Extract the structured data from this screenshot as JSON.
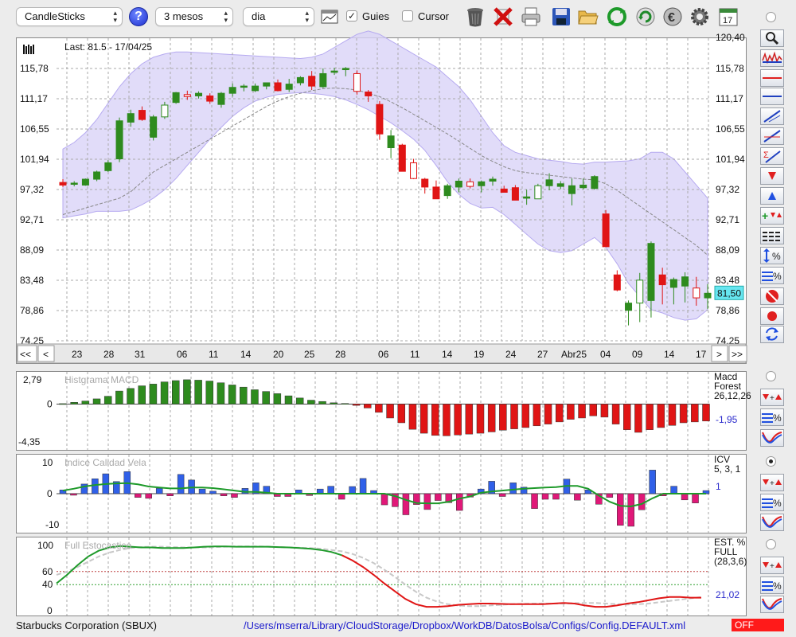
{
  "toolbar": {
    "chart_type": "CandleSticks",
    "period": "3 mesos",
    "interval": "dia",
    "help": "?",
    "guides_label": "Guies",
    "guides_checked": true,
    "cursor_label": "Cursor",
    "cursor_checked": false,
    "icons": [
      "trash-icon",
      "delete-icon",
      "printer-icon",
      "save-icon",
      "folder-icon",
      "refresh-icon",
      "reload-icon",
      "euro-icon",
      "gear-icon",
      "calendar-icon"
    ],
    "calendar_day": "17"
  },
  "price_panel": {
    "last_label": "Last: 81.5 - 17/04/25",
    "current_value": "81,50",
    "y_ticks": [
      "115,78",
      "111,17",
      "106,55",
      "101,94",
      "97,32",
      "92,71",
      "88,09",
      "83,48",
      "78,86",
      "74,25"
    ],
    "top_cut_tick": "120,40",
    "nav_buttons": [
      "<<",
      "<",
      ">",
      ">>"
    ],
    "date_ticks": [
      "23",
      "28",
      "31",
      "06",
      "11",
      "14",
      "20",
      "25",
      "28",
      "06",
      "11",
      "14",
      "19",
      "24",
      "27",
      "Abr25",
      "04",
      "09",
      "14",
      "17"
    ]
  },
  "macd_panel": {
    "title": "Histgrama MACD",
    "name": "Macd",
    "sub": "Forest",
    "params": "26,12,26",
    "value": "-1,95",
    "y_ticks": [
      "2,79",
      "0",
      "-4,35"
    ]
  },
  "icv_panel": {
    "title": "Indice Calidad Vela",
    "name": "ICV",
    "params": "5, 3, 1",
    "value": "1",
    "y_ticks": [
      "10",
      "0",
      "-10"
    ]
  },
  "stoch_panel": {
    "title": "Full Estocastico",
    "name": "EST. %",
    "sub": "FULL",
    "params": "(28,3,6)",
    "value": "21,02",
    "y_ticks": [
      "100",
      "60",
      "40",
      "0"
    ]
  },
  "footer": {
    "company": "Starbucks Corporation (SBUX)",
    "path": "/Users/mserra/Library/CloudStorage/Dropbox/WorkDB/DatosBolsa/Configs/Config.DEFAULT.xml",
    "status": "OFF"
  },
  "colors": {
    "up": "#2e8b1e",
    "down": "#e01515",
    "band": "#cdc6f5",
    "blue": "#3060e8",
    "pink": "#e01878"
  },
  "chart_data": [
    {
      "type": "candlestick",
      "title": "",
      "ylim": [
        74.25,
        120.4
      ],
      "ohlc": [
        [
          98.4,
          98.9,
          97.7,
          98.0
        ],
        [
          98.2,
          98.6,
          97.8,
          98.3
        ],
        [
          98.0,
          99.0,
          97.9,
          98.9
        ],
        [
          98.9,
          100.2,
          98.6,
          100.0
        ],
        [
          100.2,
          101.8,
          100.0,
          101.4
        ],
        [
          102.0,
          108.3,
          101.5,
          107.8
        ],
        [
          107.6,
          109.5,
          106.9,
          108.9
        ],
        [
          109.4,
          110.0,
          107.8,
          108.0
        ],
        [
          105.3,
          108.7,
          104.8,
          108.4
        ],
        [
          108.4,
          110.7,
          108.1,
          110.2
        ],
        [
          110.6,
          112.2,
          110.4,
          112.1
        ],
        [
          111.8,
          112.4,
          111.0,
          111.5
        ],
        [
          111.6,
          112.3,
          111.2,
          112.0
        ],
        [
          111.6,
          112.0,
          110.4,
          110.8
        ],
        [
          110.3,
          112.2,
          109.8,
          112.0
        ],
        [
          112.0,
          113.5,
          111.5,
          112.9
        ],
        [
          113.0,
          113.4,
          112.3,
          113.1
        ],
        [
          112.4,
          113.5,
          112.2,
          113.1
        ],
        [
          113.1,
          113.6,
          112.6,
          113.6
        ],
        [
          113.6,
          114.1,
          112.3,
          112.4
        ],
        [
          112.6,
          114.2,
          112.2,
          113.4
        ],
        [
          113.6,
          114.6,
          113.2,
          114.4
        ],
        [
          114.6,
          115.4,
          112.5,
          113.1
        ],
        [
          113.0,
          115.8,
          112.8,
          115.0
        ],
        [
          115.2,
          115.9,
          114.8,
          115.4
        ],
        [
          115.6,
          116.0,
          114.6,
          115.8
        ],
        [
          115.0,
          115.5,
          111.8,
          112.3
        ],
        [
          112.2,
          112.5,
          110.7,
          111.6
        ],
        [
          110.3,
          110.8,
          104.9,
          105.8
        ],
        [
          103.7,
          106.4,
          102.1,
          105.5
        ],
        [
          104.1,
          104.3,
          100.1,
          100.1
        ],
        [
          101.4,
          102.0,
          98.9,
          99.0
        ],
        [
          98.9,
          99.1,
          96.7,
          97.7
        ],
        [
          97.7,
          98.7,
          95.9,
          95.9
        ],
        [
          96.4,
          98.2,
          95.9,
          97.9
        ],
        [
          97.7,
          99.0,
          96.9,
          98.6
        ],
        [
          98.5,
          99.0,
          97.5,
          97.8
        ],
        [
          97.9,
          98.7,
          96.9,
          98.5
        ],
        [
          98.6,
          99.3,
          97.9,
          98.9
        ],
        [
          97.4,
          97.9,
          96.9,
          96.9
        ],
        [
          97.6,
          98.0,
          95.7,
          95.7
        ],
        [
          96.0,
          97.3,
          95.0,
          96.2
        ],
        [
          95.9,
          98.2,
          95.9,
          97.9
        ],
        [
          97.9,
          99.8,
          97.2,
          98.8
        ],
        [
          97.8,
          98.6,
          97.4,
          98.2
        ],
        [
          96.7,
          99.0,
          94.9,
          97.9
        ],
        [
          97.6,
          99.0,
          97.4,
          98.0
        ],
        [
          97.5,
          99.5,
          97.3,
          99.3
        ],
        [
          93.6,
          94.2,
          88.6,
          88.6
        ],
        [
          84.3,
          85.0,
          81.8,
          82.0
        ],
        [
          78.9,
          80.4,
          76.6,
          80.0
        ],
        [
          80.0,
          84.6,
          77.1,
          83.5
        ],
        [
          80.4,
          89.4,
          77.8,
          89.1
        ],
        [
          84.3,
          85.4,
          79.8,
          82.8
        ],
        [
          82.4,
          83.9,
          79.8,
          83.6
        ],
        [
          82.6,
          84.7,
          80.1,
          84.0
        ],
        [
          82.3,
          84.0,
          79.6,
          80.8
        ],
        [
          80.8,
          82.9,
          79.1,
          81.5
        ]
      ],
      "bollinger_upper": [
        103.5,
        104.5,
        106,
        108,
        110.5,
        113,
        115,
        116.5,
        117.5,
        118,
        118.3,
        118.3,
        118.2,
        118.1,
        118,
        117.9,
        117.8,
        117.7,
        117.6,
        117.5,
        117.4,
        117.3,
        117.5,
        118,
        119,
        120,
        121,
        121.5,
        121,
        120,
        119,
        118,
        117,
        116,
        114.5,
        113,
        111,
        108.5,
        106,
        104,
        103,
        102.5,
        102,
        101.8,
        101.6,
        101.3,
        101.2,
        101.5,
        101.5,
        101.6,
        101.7,
        102,
        103,
        103,
        102,
        100,
        98,
        96
      ],
      "bollinger_mid": [
        93.5,
        94,
        94.5,
        95,
        95.5,
        96,
        97,
        98.5,
        100,
        101,
        102,
        103,
        104,
        105,
        106,
        107,
        108,
        109,
        110,
        110.8,
        111.5,
        112,
        112.4,
        112.7,
        112.8,
        112.7,
        112.5,
        112,
        111.5,
        110.7,
        109.8,
        108.8,
        107.8,
        106.8,
        105.8,
        104.7,
        103.6,
        102.5,
        101.6,
        100.8,
        100.2,
        99.9,
        99.7,
        99.5,
        99.3,
        99.1,
        98.9,
        98.8,
        98.2,
        97.2,
        96,
        94.8,
        93.6,
        92.4,
        91.2,
        90,
        88.8,
        87.3
      ],
      "bollinger_lower": [
        93,
        93.3,
        93.6,
        94,
        94,
        94,
        94.2,
        95,
        96,
        97.3,
        99,
        101,
        103,
        105,
        106.8,
        108.5,
        109.8,
        110.8,
        111.4,
        111.8,
        112,
        112.1,
        112,
        111.8,
        111.5,
        111,
        110.3,
        109.5,
        108.5,
        107.5,
        106.3,
        105,
        103.3,
        101,
        98.5,
        96.6,
        95.2,
        94.5,
        94.6,
        93.5,
        92,
        90.5,
        89,
        88,
        87.7,
        88,
        89,
        90,
        88.5,
        86,
        83,
        81,
        79,
        78.5,
        77.8,
        77.4,
        77.6,
        79
      ]
    },
    {
      "type": "bar",
      "title": "Histgrama MACD",
      "ylim": [
        -4.35,
        2.79
      ],
      "values": [
        0.05,
        0.2,
        0.35,
        0.6,
        0.9,
        1.5,
        1.8,
        2.1,
        2.3,
        2.55,
        2.7,
        2.8,
        2.75,
        2.65,
        2.45,
        2.2,
        1.95,
        1.65,
        1.45,
        1.2,
        0.95,
        0.7,
        0.45,
        0.3,
        0.15,
        0.07,
        -0.15,
        -0.45,
        -0.95,
        -1.6,
        -2.15,
        -2.9,
        -3.35,
        -3.6,
        -3.65,
        -3.55,
        -3.45,
        -3.35,
        -3.2,
        -3.0,
        -2.85,
        -2.7,
        -2.5,
        -2.3,
        -2.05,
        -1.75,
        -1.6,
        -1.35,
        -1.5,
        -2.3,
        -2.95,
        -3.25,
        -2.95,
        -2.7,
        -2.45,
        -2.15,
        -2.05,
        -1.95
      ]
    },
    {
      "type": "bar",
      "title": "Indice Calidad Vela",
      "ylim": [
        -10,
        10
      ],
      "values": [
        1.2,
        -0.5,
        3.1,
        4.8,
        6.4,
        3.9,
        7.1,
        -1.2,
        -1.5,
        1.7,
        -0.7,
        6.2,
        4.4,
        1.5,
        0.8,
        -0.7,
        -1.2,
        1.7,
        3.5,
        2.4,
        -0.9,
        -0.9,
        1.2,
        -0.6,
        1.5,
        2.4,
        -1.8,
        2.3,
        4.9,
        1.0,
        -3.6,
        -4.2,
        -6.8,
        -3.5,
        -5.1,
        -2.2,
        -2.9,
        -5.4,
        -1.1,
        1.5,
        4.0,
        -0.9,
        3.5,
        2.1,
        -4.8,
        -1.8,
        -1.8,
        4.7,
        -2.1,
        1.2,
        -3.4,
        -1.2,
        -10.2,
        -10.5,
        -5.2,
        7.6,
        -0.7,
        2.4,
        -2.0,
        -3.0,
        1.0
      ],
      "signal": [
        1,
        1.6,
        2.3,
        2.8,
        3.1,
        3.3,
        3.4,
        3.0,
        2.3,
        2.0,
        1.7,
        1.7,
        2.0,
        2.0,
        1.8,
        1.4,
        1.0,
        0.6,
        0.6,
        0.3,
        0,
        0,
        0,
        0,
        0,
        0,
        0,
        0,
        0,
        0,
        0,
        -0.8,
        -2.0,
        -3.0,
        -3.1,
        -3.1,
        -2.6,
        -1.6,
        -0.9,
        0.3,
        0.7,
        1.0,
        1.3,
        1.6,
        1.8,
        2.0,
        2.1,
        2.5,
        2.5,
        1.6,
        -0.6,
        -2.6,
        -3.9,
        -4.1,
        -3.3,
        -1.5,
        0,
        0,
        0,
        0,
        0
      ]
    },
    {
      "type": "line",
      "title": "Full Estocastico",
      "ylim": [
        0,
        100
      ],
      "k": [
        42,
        55,
        70,
        83,
        92,
        97,
        99,
        98,
        97,
        97,
        96,
        96,
        96,
        97,
        98,
        98.5,
        98.5,
        98,
        98,
        98,
        98,
        97.5,
        97,
        96,
        95,
        93,
        90,
        85,
        77,
        67,
        55,
        42,
        30,
        18,
        10,
        6,
        6,
        7,
        9,
        10,
        11,
        11,
        10.5,
        10,
        10,
        10,
        10,
        11,
        12,
        11,
        8,
        6,
        6,
        8,
        11,
        13,
        16,
        19,
        21,
        21,
        20,
        20
      ],
      "d": [
        55,
        60,
        67,
        75,
        83,
        89,
        93,
        96,
        97.5,
        98,
        98,
        97.5,
        97,
        97,
        97,
        97.5,
        98,
        98.5,
        98.5,
        98.5,
        98,
        97.5,
        97,
        96.5,
        96,
        95,
        93,
        91,
        87,
        81,
        73,
        63,
        52,
        40,
        29,
        20,
        14,
        10,
        8,
        7,
        7,
        8,
        9,
        10,
        10.5,
        11,
        11,
        11,
        11,
        11.5,
        12,
        12,
        11,
        10,
        9.5,
        10,
        11,
        13,
        15,
        17,
        19,
        21
      ]
    }
  ]
}
